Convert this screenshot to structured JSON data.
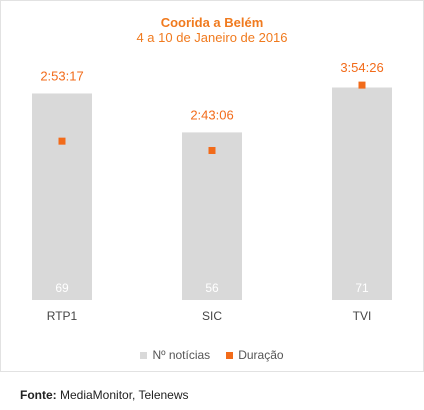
{
  "chart_data": {
    "type": "bar",
    "title": "Coorida a Belém",
    "subtitle": "4 a 10 de Janeiro de 2016",
    "categories": [
      "RTP1",
      "SIC",
      "TVI"
    ],
    "series": [
      {
        "name": "Nº notícias",
        "type": "bar",
        "color": "#d9d9d9",
        "values": [
          69,
          56,
          71
        ],
        "labels": [
          "69",
          "56",
          "71"
        ]
      },
      {
        "name": "Duração",
        "type": "scatter",
        "color": "#f26b1a",
        "values_seconds": [
          10397,
          9786,
          14066
        ],
        "labels": [
          "2:53:17",
          "2:43:06",
          "3:54:26"
        ]
      }
    ],
    "bar_axis_max": 73.5,
    "duration_axis_max_seconds": 14400,
    "legend_position": "bottom",
    "grid": false
  },
  "source": {
    "label": "Fonte:",
    "text": "MediaMonitor, Telenews"
  }
}
